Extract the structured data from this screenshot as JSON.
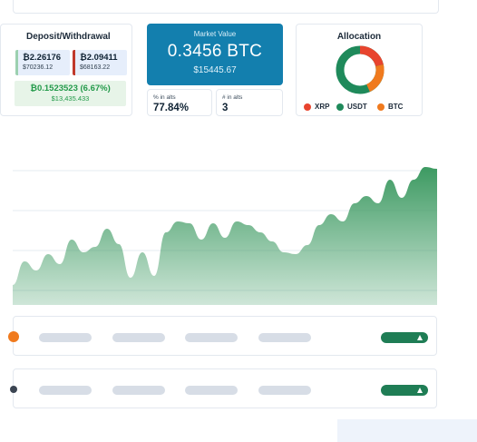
{
  "deposit": {
    "title": "Deposit/Withdrawal",
    "deposit_btc": "₿2.26176",
    "deposit_usd": "$70236.12",
    "withdraw_btc": "₿2.09411",
    "withdraw_usd": "$68163.22",
    "gain_btc": "₿0.1523523 (6.67%)",
    "gain_usd": "$13,435.433"
  },
  "market_value": {
    "label": "Market Value",
    "btc": "0.3456 BTC",
    "usd": "$15445.67"
  },
  "stats": {
    "alts_pct_label": "% in alts",
    "alts_pct_value": "77.84%",
    "alts_count_label": "# in alts",
    "alts_count_value": "3"
  },
  "allocation": {
    "title": "Allocation",
    "items": [
      {
        "label": "XRP",
        "color": "#e8442e",
        "icon": "xrp-dot"
      },
      {
        "label": "USDT",
        "color": "#1f8a5b",
        "icon": "usdt-dot"
      },
      {
        "label": "BTC",
        "color": "#f07a1e",
        "icon": "btc-dot"
      }
    ]
  },
  "chart_data": {
    "type": "area",
    "color": "#3d9a62",
    "grid": true,
    "values": [
      22,
      48,
      38,
      56,
      45,
      72,
      58,
      64,
      84,
      67,
      30,
      58,
      32,
      80,
      92,
      90,
      72,
      90,
      74,
      92,
      88,
      80,
      70,
      58,
      56,
      66,
      88,
      100,
      92,
      112,
      120,
      112,
      138,
      118,
      138,
      152,
      150
    ]
  },
  "rows": [
    {
      "icon": "orange-coin-icon",
      "icon_color": "#f07a1e"
    },
    {
      "icon": "dark-coin-icon",
      "icon_color": "#3b4552"
    }
  ]
}
